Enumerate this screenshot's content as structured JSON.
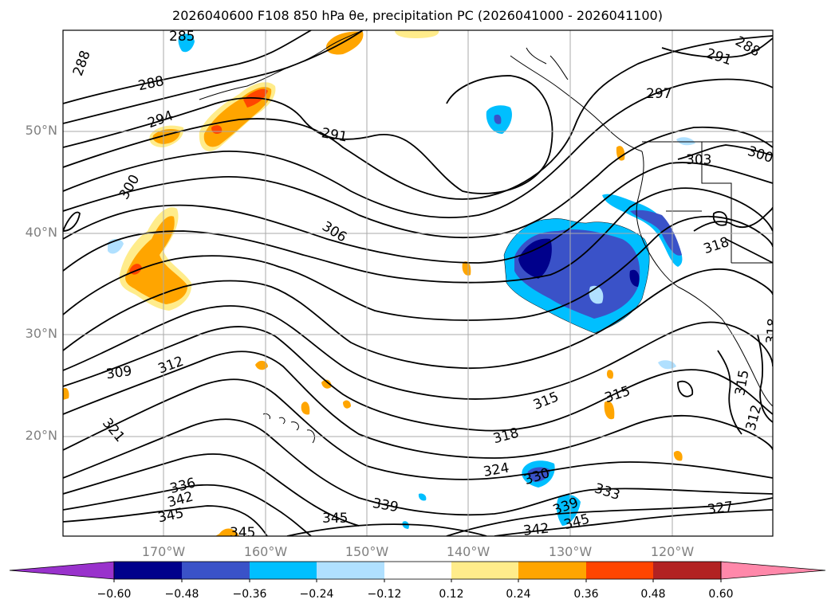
{
  "title": "2026040600 F108 850 hPa θe, precipitation PC (2026041000 - 2026041100)",
  "latitude_labels": [
    "50°N",
    "40°N",
    "30°N",
    "20°N"
  ],
  "longitude_labels": [
    "170°W",
    "160°W",
    "150°W",
    "140°W",
    "130°W",
    "120°W"
  ],
  "contour_labels": [
    "285",
    "288",
    "288",
    "288",
    "291",
    "291",
    "294",
    "297",
    "300",
    "300",
    "303",
    "306",
    "309",
    "312",
    "312",
    "315",
    "315",
    "315",
    "318",
    "318",
    "318",
    "321",
    "324",
    "327",
    "330",
    "333",
    "336",
    "339",
    "339",
    "342",
    "342",
    "345",
    "345",
    "345",
    "345"
  ],
  "colorbar": {
    "tick_labels": [
      "−0.60",
      "−0.48",
      "−0.36",
      "−0.24",
      "−0.12",
      "0.12",
      "0.24",
      "0.36",
      "0.48",
      "0.60"
    ],
    "colors": [
      "#9932cc",
      "#00008b",
      "#3a52c8",
      "#00bfff",
      "#b0e0ff",
      "#ffffff",
      "#ffec8b",
      "#ffa500",
      "#ff4500",
      "#b22222",
      "#ff88aa"
    ]
  }
}
